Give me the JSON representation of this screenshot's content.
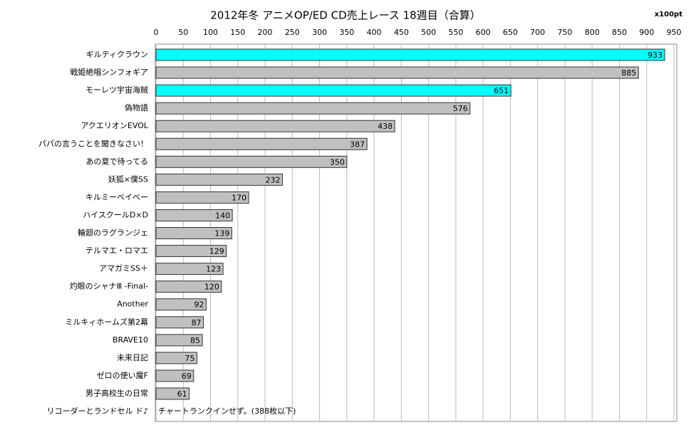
{
  "chart_data": {
    "type": "hbar",
    "title": "2012年冬 アニメOP/ED CD売上レース 18週目（合算）",
    "unit": "x100pt",
    "categories": [
      "ギルティクラウン",
      "戦姫絶唱シンフォギア",
      "モーレツ宇宙海賊",
      "偽物語",
      "アクエリオンEVOL",
      "パパの言うことを聞きなさい！",
      "あの夏で待ってる",
      "妖狐×僕SS",
      "キルミーベイベー",
      "ハイスクールD×D",
      "輪廻のラグランジェ",
      "テルマエ・ロマエ",
      "アマガミSS＋",
      "灼眼のシャナⅢ -Final-",
      "Another",
      "ミルキィホームズ第2幕",
      "BRAVE10",
      "未来日記",
      "ゼロの使い魔F",
      "男子高校生の日常",
      "リコーダーとランドセル ド♪"
    ],
    "values": [
      933,
      885,
      651,
      576,
      438,
      387,
      350,
      232,
      170,
      140,
      139,
      129,
      123,
      120,
      92,
      87,
      85,
      75,
      69,
      61,
      null
    ],
    "colors": [
      "#00ffff",
      "#c0c0c0",
      "#00ffff",
      "#c0c0c0",
      "#c0c0c0",
      "#c0c0c0",
      "#c0c0c0",
      "#c0c0c0",
      "#c0c0c0",
      "#c0c0c0",
      "#c0c0c0",
      "#c0c0c0",
      "#c0c0c0",
      "#c0c0c0",
      "#c0c0c0",
      "#c0c0c0",
      "#c0c0c0",
      "#c0c0c0",
      "#c0c0c0",
      "#c0c0c0",
      null
    ],
    "annotation": "チャートランクインせず。(388枚以下)",
    "xlim": [
      0,
      950
    ],
    "xticks": [
      0,
      50,
      100,
      150,
      200,
      250,
      300,
      350,
      400,
      450,
      500,
      550,
      600,
      650,
      700,
      750,
      800,
      850,
      900,
      950
    ],
    "grid": true
  }
}
